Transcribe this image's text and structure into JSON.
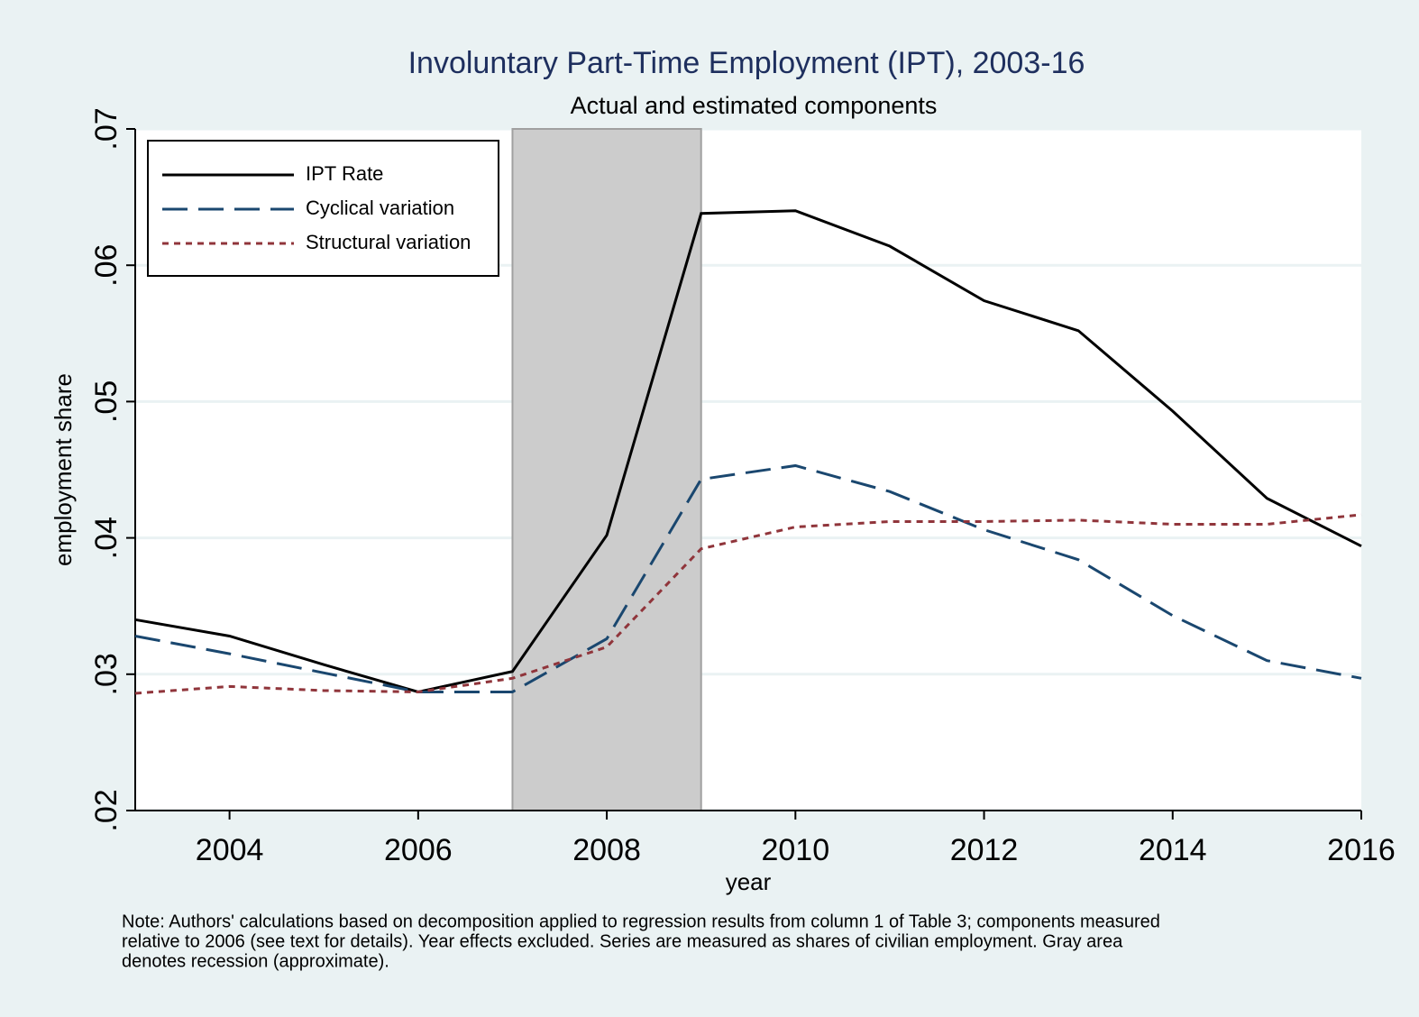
{
  "chart_data": {
    "type": "line",
    "title": "Involuntary Part-Time Employment (IPT), 2003-16",
    "subtitle": "Actual and estimated components",
    "x_label": "year",
    "y_label": "employment share",
    "note": [
      "Note: Authors' calculations based on decomposition applied to regression results from column 1 of Table 3; components measured",
      "relative to 2006 (see text for details). Year effects excluded. Series are measured as shares of civilian employment. Gray area",
      "denotes recession (approximate)."
    ],
    "x": [
      2003,
      2004,
      2005,
      2006,
      2007,
      2008,
      2009,
      2010,
      2011,
      2012,
      2013,
      2014,
      2015,
      2016
    ],
    "series": [
      {
        "name": "IPT Rate",
        "color": "#000000",
        "dash": "solid",
        "values": [
          0.034,
          0.0328,
          0.0307,
          0.0287,
          0.0302,
          0.0402,
          0.0638,
          0.064,
          0.0614,
          0.0574,
          0.0552,
          0.0493,
          0.0429,
          0.0394
        ]
      },
      {
        "name": "Cyclical variation",
        "color": "#1a476f",
        "dash": "dashed",
        "values": [
          0.0328,
          0.0315,
          0.0301,
          0.0287,
          0.0287,
          0.0326,
          0.0443,
          0.0453,
          0.0434,
          0.0406,
          0.0384,
          0.0343,
          0.031,
          0.0297
        ]
      },
      {
        "name": "Structural variation",
        "color": "#90353b",
        "dash": "dotted",
        "values": [
          0.0286,
          0.0291,
          0.0288,
          0.0287,
          0.0297,
          0.032,
          0.0392,
          0.0408,
          0.0412,
          0.0412,
          0.0413,
          0.041,
          0.041,
          0.0417
        ]
      }
    ],
    "shade": [
      2007,
      2009
    ],
    "shade_color": "#cccccc",
    "xlim": [
      2003,
      2016
    ],
    "xticks": [
      2004,
      2006,
      2008,
      2010,
      2012,
      2014,
      2016
    ],
    "ylim": [
      0.02,
      0.07
    ],
    "yticks": [
      {
        "value": 0.02,
        "label": ".02"
      },
      {
        "value": 0.03,
        "label": ".03"
      },
      {
        "value": 0.04,
        "label": ".04"
      },
      {
        "value": 0.05,
        "label": ".05"
      },
      {
        "value": 0.06,
        "label": ".06"
      },
      {
        "value": 0.07,
        "label": ".07"
      }
    ],
    "grid": true,
    "legend": "upper left"
  }
}
